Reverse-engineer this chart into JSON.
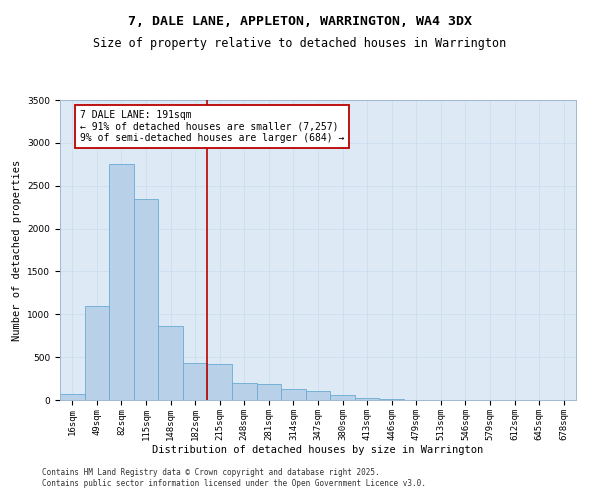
{
  "title_line1": "7, DALE LANE, APPLETON, WARRINGTON, WA4 3DX",
  "title_line2": "Size of property relative to detached houses in Warrington",
  "xlabel": "Distribution of detached houses by size in Warrington",
  "ylabel": "Number of detached properties",
  "footnote1": "Contains HM Land Registry data © Crown copyright and database right 2025.",
  "footnote2": "Contains public sector information licensed under the Open Government Licence v3.0.",
  "categories": [
    "16sqm",
    "49sqm",
    "82sqm",
    "115sqm",
    "148sqm",
    "182sqm",
    "215sqm",
    "248sqm",
    "281sqm",
    "314sqm",
    "347sqm",
    "380sqm",
    "413sqm",
    "446sqm",
    "479sqm",
    "513sqm",
    "546sqm",
    "579sqm",
    "612sqm",
    "645sqm",
    "678sqm"
  ],
  "values": [
    70,
    1100,
    2750,
    2350,
    860,
    430,
    420,
    195,
    190,
    125,
    110,
    60,
    18,
    10,
    4,
    3,
    2,
    2,
    1,
    1,
    1
  ],
  "bar_color": "#b8d0e8",
  "bar_edge_color": "#6aaad4",
  "grid_color": "#ccddf0",
  "background_color": "#ddeaf5",
  "red_line_x": 5.5,
  "annotation_text": "7 DALE LANE: 191sqm\n← 91% of detached houses are smaller (7,257)\n9% of semi-detached houses are larger (684) →",
  "annotation_box_color": "#ffffff",
  "annotation_border_color": "#bb0000",
  "ylim": [
    0,
    3500
  ],
  "yticks": [
    0,
    500,
    1000,
    1500,
    2000,
    2500,
    3000,
    3500
  ],
  "title_fontsize": 9.5,
  "subtitle_fontsize": 8.5,
  "axis_label_fontsize": 7.5,
  "tick_fontsize": 6.5,
  "annotation_fontsize": 7,
  "footnote_fontsize": 5.5
}
